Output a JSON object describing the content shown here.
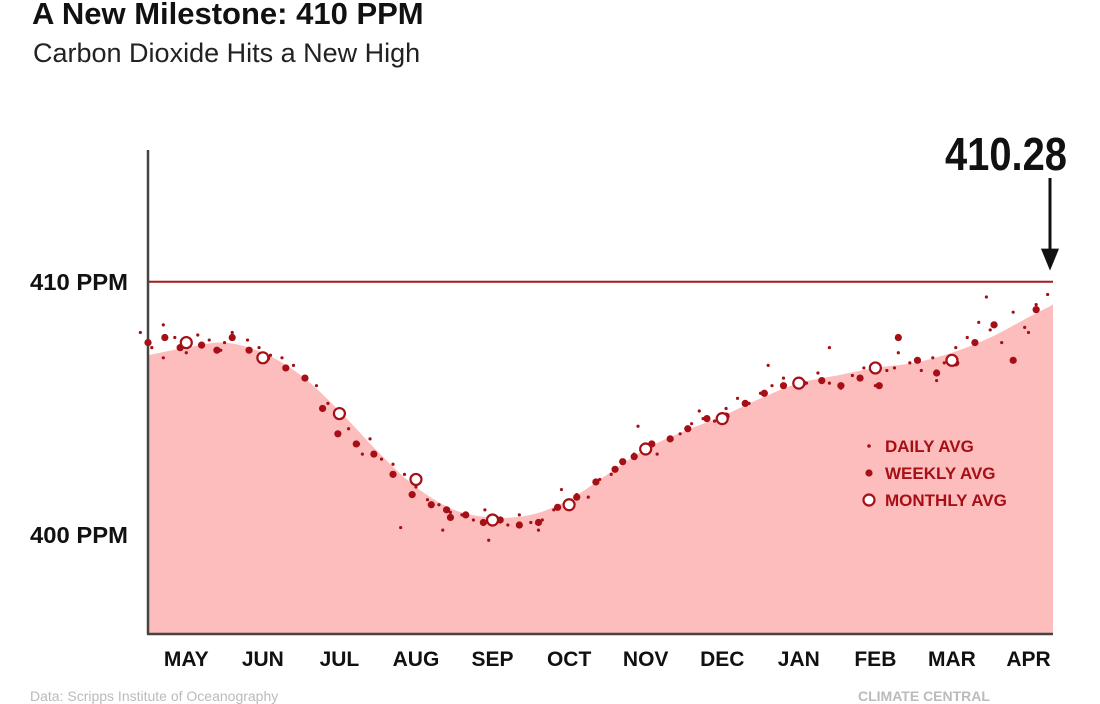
{
  "title": "A New Milestone: 410 PPM",
  "subtitle": "Carbon Dioxide Hits a New High",
  "footer": {
    "source": "Data: Scripps Institute of Oceanography",
    "credit": "CLIMATE CENTRAL"
  },
  "colors": {
    "area_fill": "#fdbdbd",
    "marker": "#a50f15",
    "reference_line": "#a51c1c",
    "text": "#111111",
    "axis": "#444444"
  },
  "chart_data": {
    "type": "scatter",
    "title": "A New Milestone: 410 PPM",
    "subtitle": "Carbon Dioxide Hits a New High",
    "xlabel": "",
    "ylabel": "",
    "x_categories": [
      "MAY",
      "JUN",
      "JUL",
      "AUG",
      "SEP",
      "OCT",
      "NOV",
      "DEC",
      "JAN",
      "FEB",
      "MAR",
      "APR"
    ],
    "xlim": [
      0,
      11.82
    ],
    "ylim": [
      396.1,
      415.2
    ],
    "y_ticks": [
      {
        "value": 410,
        "label": "410 PPM"
      },
      {
        "value": 400,
        "label": "400 PPM"
      }
    ],
    "reference_line": {
      "y": 410
    },
    "annotation": {
      "text": "410.28",
      "x": 11.82,
      "y": 410.28
    },
    "legend": {
      "position": "right",
      "entries": [
        "DAILY AVG",
        "WEEKLY AVG",
        "MONTHLY AVG"
      ]
    },
    "grid": false,
    "series": [
      {
        "name": "DAILY AVG",
        "marker": "small-dot",
        "points": [
          [
            -0.1,
            408.0
          ],
          [
            0.05,
            407.4
          ],
          [
            0.2,
            408.3
          ],
          [
            0.35,
            407.8
          ],
          [
            0.5,
            407.2
          ],
          [
            0.65,
            407.9
          ],
          [
            0.8,
            407.7
          ],
          [
            0.95,
            407.3
          ],
          [
            1.1,
            408.0
          ],
          [
            1.3,
            407.7
          ],
          [
            1.45,
            407.4
          ],
          [
            1.6,
            407.1
          ],
          [
            1.75,
            407.0
          ],
          [
            1.9,
            406.7
          ],
          [
            2.05,
            406.2
          ],
          [
            2.2,
            405.9
          ],
          [
            2.35,
            405.2
          ],
          [
            2.5,
            404.8
          ],
          [
            2.62,
            404.2
          ],
          [
            2.75,
            403.6
          ],
          [
            2.9,
            403.8
          ],
          [
            3.05,
            403.0
          ],
          [
            3.2,
            402.8
          ],
          [
            3.35,
            402.4
          ],
          [
            3.5,
            401.9
          ],
          [
            3.65,
            401.4
          ],
          [
            3.8,
            401.2
          ],
          [
            3.95,
            400.9
          ],
          [
            4.1,
            400.8
          ],
          [
            4.25,
            400.6
          ],
          [
            4.4,
            401.0
          ],
          [
            4.55,
            400.6
          ],
          [
            4.7,
            400.4
          ],
          [
            4.85,
            400.8
          ],
          [
            5.0,
            400.5
          ],
          [
            5.15,
            400.6
          ],
          [
            5.3,
            401.0
          ],
          [
            5.45,
            401.2
          ],
          [
            5.6,
            401.6
          ],
          [
            5.75,
            401.5
          ],
          [
            5.9,
            402.2
          ],
          [
            6.05,
            402.4
          ],
          [
            6.2,
            402.9
          ],
          [
            6.35,
            403.2
          ],
          [
            6.5,
            403.6
          ],
          [
            6.65,
            403.2
          ],
          [
            6.8,
            403.8
          ],
          [
            6.95,
            404.0
          ],
          [
            7.1,
            404.4
          ],
          [
            7.25,
            404.6
          ],
          [
            7.4,
            404.5
          ],
          [
            7.55,
            405.0
          ],
          [
            7.7,
            405.4
          ],
          [
            7.85,
            405.2
          ],
          [
            8.0,
            405.6
          ],
          [
            8.15,
            405.9
          ],
          [
            8.3,
            406.2
          ],
          [
            8.45,
            406.1
          ],
          [
            8.6,
            406.0
          ],
          [
            8.75,
            406.4
          ],
          [
            8.9,
            406.0
          ],
          [
            9.05,
            405.8
          ],
          [
            9.2,
            406.3
          ],
          [
            9.35,
            406.6
          ],
          [
            9.5,
            405.9
          ],
          [
            9.65,
            406.5
          ],
          [
            9.8,
            407.2
          ],
          [
            9.95,
            406.8
          ],
          [
            10.1,
            406.5
          ],
          [
            10.25,
            407.0
          ],
          [
            10.4,
            406.8
          ],
          [
            10.55,
            407.4
          ],
          [
            10.7,
            407.8
          ],
          [
            10.85,
            408.4
          ],
          [
            11.0,
            408.1
          ],
          [
            11.15,
            407.6
          ],
          [
            11.3,
            408.8
          ],
          [
            11.45,
            408.2
          ],
          [
            11.6,
            409.1
          ],
          [
            11.75,
            409.5
          ],
          [
            0.2,
            407.0
          ],
          [
            1.0,
            407.6
          ],
          [
            2.8,
            403.2
          ],
          [
            3.3,
            400.3
          ],
          [
            3.85,
            400.2
          ],
          [
            4.45,
            399.8
          ],
          [
            5.1,
            400.2
          ],
          [
            5.4,
            401.8
          ],
          [
            6.4,
            404.3
          ],
          [
            7.2,
            404.9
          ],
          [
            8.1,
            406.7
          ],
          [
            8.9,
            407.4
          ],
          [
            9.75,
            406.6
          ],
          [
            10.3,
            406.1
          ],
          [
            10.95,
            409.4
          ],
          [
            11.5,
            408.0
          ]
        ]
      },
      {
        "name": "WEEKLY AVG",
        "marker": "filled-dot",
        "points": [
          [
            0.0,
            407.6
          ],
          [
            0.22,
            407.8
          ],
          [
            0.42,
            407.4
          ],
          [
            0.7,
            407.5
          ],
          [
            0.9,
            407.3
          ],
          [
            1.1,
            407.8
          ],
          [
            1.32,
            407.3
          ],
          [
            1.55,
            407.0
          ],
          [
            1.8,
            406.6
          ],
          [
            2.05,
            406.2
          ],
          [
            2.28,
            405.0
          ],
          [
            2.48,
            404.0
          ],
          [
            2.72,
            403.6
          ],
          [
            2.95,
            403.2
          ],
          [
            3.2,
            402.4
          ],
          [
            3.45,
            401.6
          ],
          [
            3.7,
            401.2
          ],
          [
            3.9,
            401.0
          ],
          [
            4.15,
            400.8
          ],
          [
            4.38,
            400.5
          ],
          [
            4.6,
            400.6
          ],
          [
            4.85,
            400.4
          ],
          [
            5.1,
            400.5
          ],
          [
            5.35,
            401.1
          ],
          [
            5.6,
            401.5
          ],
          [
            5.85,
            402.1
          ],
          [
            6.1,
            402.6
          ],
          [
            6.35,
            403.1
          ],
          [
            6.58,
            403.6
          ],
          [
            6.82,
            403.8
          ],
          [
            7.05,
            404.2
          ],
          [
            7.3,
            404.6
          ],
          [
            7.55,
            404.7
          ],
          [
            7.8,
            405.2
          ],
          [
            8.05,
            405.6
          ],
          [
            8.3,
            405.9
          ],
          [
            8.55,
            406.0
          ],
          [
            8.8,
            406.1
          ],
          [
            9.05,
            405.9
          ],
          [
            9.3,
            406.2
          ],
          [
            9.55,
            405.9
          ],
          [
            9.8,
            407.8
          ],
          [
            10.05,
            406.9
          ],
          [
            10.3,
            406.4
          ],
          [
            10.55,
            406.8
          ],
          [
            10.8,
            407.6
          ],
          [
            11.05,
            408.3
          ],
          [
            11.3,
            406.9
          ],
          [
            11.6,
            408.9
          ],
          [
            3.95,
            400.7
          ],
          [
            6.2,
            402.9
          ]
        ]
      },
      {
        "name": "MONTHLY AVG",
        "marker": "open-circle",
        "points": [
          [
            0.5,
            407.6
          ],
          [
            1.5,
            407.0
          ],
          [
            2.5,
            404.8
          ],
          [
            3.5,
            402.2
          ],
          [
            4.5,
            400.6
          ],
          [
            5.5,
            401.2
          ],
          [
            6.5,
            403.4
          ],
          [
            7.5,
            404.6
          ],
          [
            8.5,
            406.0
          ],
          [
            9.5,
            406.6
          ],
          [
            10.5,
            406.9
          ]
        ]
      },
      {
        "name": "smoothed trend",
        "marker": "filled-area",
        "points": [
          [
            0,
            407.1
          ],
          [
            0.5,
            407.4
          ],
          [
            1.0,
            407.6
          ],
          [
            1.5,
            407.2
          ],
          [
            2.0,
            406.3
          ],
          [
            2.5,
            404.9
          ],
          [
            3.0,
            403.3
          ],
          [
            3.5,
            401.9
          ],
          [
            4.0,
            401.0
          ],
          [
            4.5,
            400.7
          ],
          [
            5.0,
            400.8
          ],
          [
            5.5,
            401.4
          ],
          [
            6.0,
            402.4
          ],
          [
            6.5,
            403.4
          ],
          [
            7.0,
            404.1
          ],
          [
            7.5,
            404.7
          ],
          [
            8.0,
            405.4
          ],
          [
            8.5,
            406.0
          ],
          [
            9.0,
            406.3
          ],
          [
            9.5,
            406.6
          ],
          [
            10.0,
            406.8
          ],
          [
            10.5,
            407.2
          ],
          [
            11.0,
            407.8
          ],
          [
            11.5,
            408.6
          ],
          [
            11.82,
            409.1
          ]
        ]
      }
    ]
  }
}
